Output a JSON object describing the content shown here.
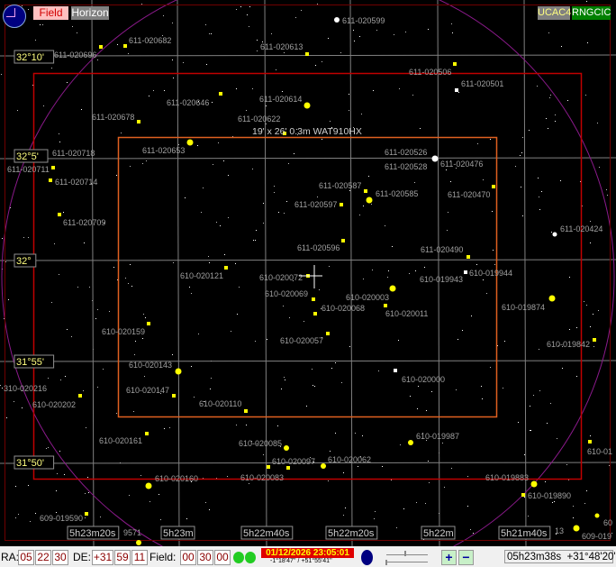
{
  "toolbar": {
    "field_label": "Field",
    "horizon_label": "Horizon",
    "catalog1": "UCAC4",
    "catalog2": "RNGCIC"
  },
  "fov_label": "19' x 26'  0.3m WAT910HX",
  "dec_labels": [
    "32°10'",
    "32°5'",
    "32°",
    "31°55'",
    "31°50'"
  ],
  "ra_labels": [
    "5h23m20s",
    "5h23m",
    "5h22m40s",
    "5h22m20s",
    "5h22m",
    "5h21m40s"
  ],
  "stars": [
    "611-020599",
    "611-020682",
    "611-020696",
    "611-020613",
    "611-020506",
    "611-020501",
    "611-020646",
    "611-020614",
    "611-020678",
    "611-020622",
    "611-020653",
    "611-020718",
    "611-020711",
    "611-020526",
    "611-020528",
    "611-020476",
    "611-020714",
    "611-020587",
    "611-020585",
    "611-020470",
    "611-020597",
    "611-020709",
    "611-020424",
    "611-020596",
    "611-020490",
    "610-020121",
    "610-020072",
    "610-019944",
    "610-019943",
    "610-020069",
    "610-020003",
    "610-020068",
    "610-020011",
    "610-019874",
    "610-020159",
    "610-020057",
    "610-019842",
    "610-020143",
    "610-020000",
    "310-020216",
    "610-020147",
    "610-020202",
    "610-020110",
    "610-020161",
    "610-020085",
    "610-019987",
    "610-020097",
    "610-020062",
    "610-020083",
    "610-020160",
    "610-019883",
    "610-019890",
    "609-019590",
    "9571",
    "13",
    "609-019",
    "60",
    "610-01"
  ],
  "status": {
    "ra_label": "RA:",
    "ra": [
      "05",
      "22",
      "30"
    ],
    "de_label": "DE:",
    "de": [
      "+31",
      "59",
      "11"
    ],
    "field_label": "Field:",
    "field": [
      "00",
      "30",
      "00"
    ],
    "datetime": "01/12/2026 23:05:01",
    "altaz": "-1°18'47'' / +51°55'41''",
    "zoom_in": "+",
    "zoom_out": "−",
    "cursor_coords": "05h23m38s  +31°48'20''"
  },
  "colors": {
    "grid": "#808080",
    "fov": "#c00000",
    "horizon_circle": "#8b1a8b",
    "star": "#ffff00",
    "label": "#a0a0a0"
  }
}
